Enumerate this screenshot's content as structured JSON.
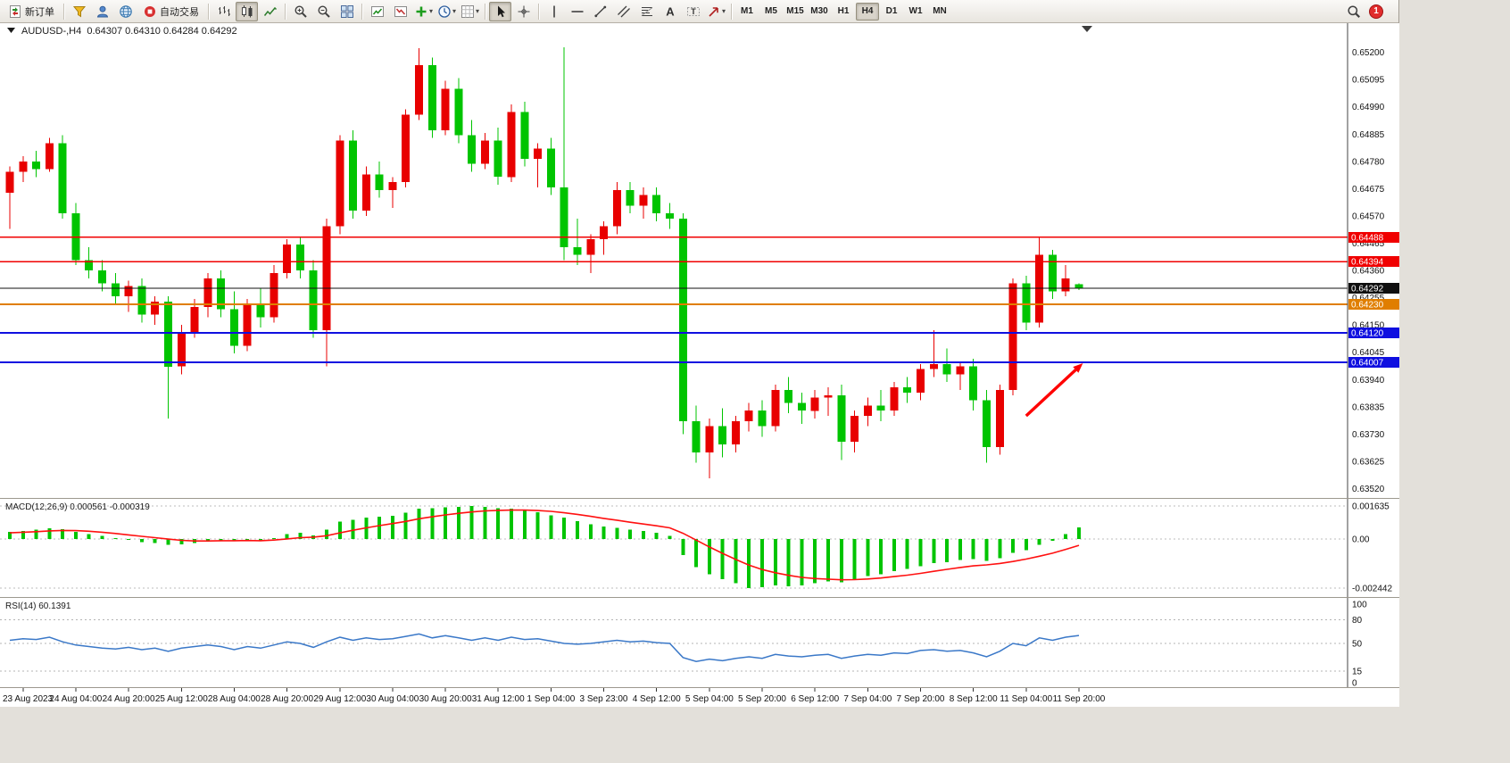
{
  "toolbar": {
    "new_order_label": "新订单",
    "auto_trading_label": "自动交易",
    "timeframes": [
      "M1",
      "M5",
      "M15",
      "M30",
      "H1",
      "H4",
      "D1",
      "W1",
      "MN"
    ],
    "active_timeframe": "H4",
    "notification_badge": "1",
    "icons": [
      "new-order-icon",
      "funnel-icon",
      "user-icon",
      "globe-icon",
      "auto-trading-icon",
      "bar-chart-icon",
      "candlestick-icon",
      "line-chart-icon",
      "zoom-in-icon",
      "zoom-out-icon",
      "tile-windows-icon",
      "indicator-window-up-icon",
      "indicator-window-down-icon",
      "add-indicator-icon",
      "clock-icon",
      "chart-properties-icon",
      "cursor-icon",
      "crosshair-icon",
      "vertical-line-icon",
      "horizontal-line-icon",
      "trendline-icon",
      "channel-icon",
      "fibonacci-icon",
      "text-icon",
      "text-label-icon",
      "arrow-tool-icon",
      "search-icon",
      "notification-badge"
    ]
  },
  "chart": {
    "symbol_period": "AUDUSD-,H4",
    "open": "0.64307",
    "high": "0.64310",
    "low": "0.64284",
    "close": "0.64292"
  },
  "indicators": {
    "macd_label": "MACD(12,26,9)",
    "macd_main_value": "0.000561",
    "macd_signal_value": "-0.000319",
    "rsi_label": "RSI(14)",
    "rsi_value": "60.1391"
  },
  "theme": {
    "up_color": "#e80000",
    "down_color": "#00c400",
    "macd_hist_color": "#00c400",
    "macd_signal_color": "#ff1010",
    "rsi_color": "#3a78c8",
    "axis_text": "#111111",
    "current_price_color": "#101010"
  },
  "chart_data": {
    "type": "candlestick",
    "symbol": "AUDUSD-",
    "timeframe": "H4",
    "price_range": {
      "top": 0.65312,
      "bottom": 0.63484
    },
    "price_axis_ticks": [
      "0.65200",
      "0.65095",
      "0.64990",
      "0.64885",
      "0.64780",
      "0.64675",
      "0.64570",
      "0.64465",
      "0.64360",
      "0.64255",
      "0.64150",
      "0.64045",
      "0.63940",
      "0.63835",
      "0.63730",
      "0.63625",
      "0.63520"
    ],
    "time_axis": {
      "first_label_bar": 1,
      "bar_step": 4,
      "labels": [
        "23 Aug 2023",
        "24 Aug 04:00",
        "24 Aug 20:00",
        "25 Aug 12:00",
        "28 Aug 04:00",
        "28 Aug 20:00",
        "29 Aug 12:00",
        "30 Aug 04:00",
        "30 Aug 20:00",
        "31 Aug 12:00",
        "1 Sep 04:00",
        "3 Sep 23:00",
        "4 Sep 12:00",
        "5 Sep 04:00",
        "5 Sep 20:00",
        "6 Sep 12:00",
        "7 Sep 04:00",
        "7 Sep 20:00",
        "8 Sep 12:00",
        "11 Sep 04:00",
        "11 Sep 20:00"
      ]
    },
    "candles": [
      [
        0.6466,
        0.6476,
        0.6452,
        0.6474
      ],
      [
        0.6474,
        0.648,
        0.647,
        0.6478
      ],
      [
        0.6478,
        0.6482,
        0.6472,
        0.6475
      ],
      [
        0.6475,
        0.6487,
        0.6474,
        0.6485
      ],
      [
        0.6485,
        0.6488,
        0.6456,
        0.6458
      ],
      [
        0.6458,
        0.6462,
        0.6438,
        0.644
      ],
      [
        0.644,
        0.6445,
        0.6433,
        0.6436
      ],
      [
        0.6436,
        0.644,
        0.6428,
        0.6431
      ],
      [
        0.6431,
        0.6435,
        0.6423,
        0.6426
      ],
      [
        0.6426,
        0.6432,
        0.642,
        0.643
      ],
      [
        0.643,
        0.6433,
        0.6416,
        0.6419
      ],
      [
        0.6419,
        0.6426,
        0.6415,
        0.6424
      ],
      [
        0.6424,
        0.6426,
        0.6379,
        0.6399
      ],
      [
        0.6399,
        0.6415,
        0.6396,
        0.6412
      ],
      [
        0.6412,
        0.6425,
        0.641,
        0.6422
      ],
      [
        0.6422,
        0.6435,
        0.6418,
        0.6433
      ],
      [
        0.6433,
        0.6436,
        0.6418,
        0.6421
      ],
      [
        0.6421,
        0.6428,
        0.6404,
        0.6407
      ],
      [
        0.6407,
        0.6425,
        0.6405,
        0.6423
      ],
      [
        0.6423,
        0.6429,
        0.6414,
        0.6418
      ],
      [
        0.6418,
        0.6438,
        0.6416,
        0.6435
      ],
      [
        0.6435,
        0.6448,
        0.6433,
        0.6446
      ],
      [
        0.6446,
        0.6449,
        0.6433,
        0.6436
      ],
      [
        0.6436,
        0.644,
        0.641,
        0.6413
      ],
      [
        0.6413,
        0.6456,
        0.6399,
        0.6453
      ],
      [
        0.6453,
        0.6488,
        0.645,
        0.6486
      ],
      [
        0.6486,
        0.649,
        0.6456,
        0.6459
      ],
      [
        0.6459,
        0.6476,
        0.6457,
        0.6473
      ],
      [
        0.6473,
        0.6478,
        0.6464,
        0.6467
      ],
      [
        0.6467,
        0.6472,
        0.646,
        0.647
      ],
      [
        0.647,
        0.6498,
        0.6468,
        0.6496
      ],
      [
        0.6496,
        0.65215,
        0.6494,
        0.6515
      ],
      [
        0.6515,
        0.6518,
        0.6487,
        0.649
      ],
      [
        0.649,
        0.6509,
        0.6488,
        0.6506
      ],
      [
        0.6506,
        0.651,
        0.6485,
        0.6488
      ],
      [
        0.6488,
        0.6494,
        0.6474,
        0.6477
      ],
      [
        0.6477,
        0.6489,
        0.6475,
        0.6486
      ],
      [
        0.6486,
        0.6491,
        0.6469,
        0.6472
      ],
      [
        0.6472,
        0.65,
        0.647,
        0.6497
      ],
      [
        0.6497,
        0.6501,
        0.6476,
        0.6479
      ],
      [
        0.6479,
        0.6485,
        0.6468,
        0.6483
      ],
      [
        0.6483,
        0.6487,
        0.6465,
        0.6468
      ],
      [
        0.6468,
        0.6522,
        0.644,
        0.6445
      ],
      [
        0.6445,
        0.6456,
        0.6438,
        0.6442
      ],
      [
        0.6442,
        0.645,
        0.6435,
        0.6448
      ],
      [
        0.6448,
        0.6455,
        0.6442,
        0.6453
      ],
      [
        0.6453,
        0.647,
        0.645,
        0.6467
      ],
      [
        0.6467,
        0.647,
        0.6458,
        0.6461
      ],
      [
        0.6461,
        0.6468,
        0.6456,
        0.6465
      ],
      [
        0.6465,
        0.6468,
        0.6455,
        0.6458
      ],
      [
        0.6458,
        0.6462,
        0.6452,
        0.6456
      ],
      [
        0.6456,
        0.6458,
        0.6373,
        0.6378
      ],
      [
        0.6378,
        0.6384,
        0.6362,
        0.6366
      ],
      [
        0.6366,
        0.6379,
        0.6356,
        0.6376
      ],
      [
        0.6376,
        0.6383,
        0.6364,
        0.6369
      ],
      [
        0.6369,
        0.638,
        0.6366,
        0.6378
      ],
      [
        0.6378,
        0.6385,
        0.6374,
        0.6382
      ],
      [
        0.6382,
        0.6386,
        0.6372,
        0.6376
      ],
      [
        0.6376,
        0.6392,
        0.6374,
        0.639
      ],
      [
        0.639,
        0.6395,
        0.6381,
        0.6385
      ],
      [
        0.6385,
        0.6389,
        0.6377,
        0.6382
      ],
      [
        0.6382,
        0.639,
        0.6379,
        0.6387
      ],
      [
        0.6387,
        0.6391,
        0.638,
        0.6388
      ],
      [
        0.6388,
        0.6392,
        0.6363,
        0.637
      ],
      [
        0.637,
        0.6382,
        0.6366,
        0.638
      ],
      [
        0.638,
        0.6387,
        0.6376,
        0.6384
      ],
      [
        0.6384,
        0.639,
        0.6378,
        0.6382
      ],
      [
        0.6382,
        0.6393,
        0.638,
        0.6391
      ],
      [
        0.6391,
        0.6395,
        0.6385,
        0.6389
      ],
      [
        0.6389,
        0.64,
        0.6386,
        0.6398
      ],
      [
        0.6398,
        0.6413,
        0.6395,
        0.64
      ],
      [
        0.64,
        0.6406,
        0.6393,
        0.6396
      ],
      [
        0.6396,
        0.6401,
        0.639,
        0.6399
      ],
      [
        0.6399,
        0.6402,
        0.6382,
        0.6386
      ],
      [
        0.6386,
        0.639,
        0.6362,
        0.6368
      ],
      [
        0.6368,
        0.6392,
        0.6365,
        0.639
      ],
      [
        0.639,
        0.6433,
        0.6388,
        0.6431
      ],
      [
        0.6431,
        0.6434,
        0.6413,
        0.6416
      ],
      [
        0.6416,
        0.6449,
        0.6414,
        0.6442
      ],
      [
        0.6442,
        0.6444,
        0.6425,
        0.6428
      ],
      [
        0.6428,
        0.6438,
        0.6426,
        0.6433
      ],
      [
        0.64307,
        0.6431,
        0.64284,
        0.64292
      ]
    ],
    "horizontal_lines": [
      {
        "price": 0.64488,
        "label": "0.64488",
        "color": "#f00000",
        "width": 1.4
      },
      {
        "price": 0.64394,
        "label": "0.64394",
        "color": "#f00000",
        "width": 1.4
      },
      {
        "price": 0.6423,
        "label": "0.64230",
        "color": "#e07e00",
        "width": 2
      },
      {
        "price": 0.6412,
        "label": "0.64120",
        "color": "#0f0fe0",
        "width": 2
      },
      {
        "price": 0.64007,
        "label": "0.64007",
        "color": "#0f0fe0",
        "width": 2
      }
    ],
    "current_price": {
      "value": 0.64292,
      "label": "0.64292"
    },
    "annotation_arrow": {
      "from_bar": 77,
      "from_price": 0.638,
      "to_bar": 81.3,
      "to_price": 0.64003,
      "color": "#ff0000"
    },
    "macd": {
      "axis_max": 0.001635,
      "axis_min": -0.002442,
      "axis_labels": [
        "0.001635",
        "0.00",
        "-0.002442"
      ],
      "values": [
        0.00035,
        0.0004,
        0.00045,
        0.00052,
        0.00048,
        0.00035,
        0.00025,
        0.00015,
        5e-05,
        -5e-05,
        -0.00015,
        -0.0002,
        -0.0003,
        -0.00028,
        -0.0002,
        -0.0001,
        -8e-05,
        -0.00012,
        -6e-05,
        -0.0001,
        5e-05,
        0.00025,
        0.0003,
        0.00018,
        0.00045,
        0.00085,
        0.00095,
        0.00105,
        0.0011,
        0.00115,
        0.0013,
        0.0015,
        0.00152,
        0.00156,
        0.0016,
        0.001635,
        0.0016,
        0.00152,
        0.0015,
        0.00142,
        0.00132,
        0.00118,
        0.00105,
        0.00088,
        0.00072,
        0.00062,
        0.00056,
        0.00046,
        0.0004,
        0.0003,
        0.00015,
        -0.0008,
        -0.0014,
        -0.00175,
        -0.002,
        -0.0022,
        -0.002442,
        -0.0024,
        -0.0023,
        -0.00235,
        -0.0023,
        -0.0022,
        -0.0021,
        -0.00215,
        -0.002,
        -0.00185,
        -0.00175,
        -0.0016,
        -0.0015,
        -0.00135,
        -0.0012,
        -0.00115,
        -0.00105,
        -0.001,
        -0.0011,
        -0.00095,
        -0.0007,
        -0.00055,
        -0.0003,
        -0.0001,
        0.00025,
        0.000561
      ],
      "signal": [
        0.0003,
        0.00033,
        0.00036,
        0.0004,
        0.00042,
        0.00041,
        0.00038,
        0.00033,
        0.00027,
        0.0002,
        0.00013,
        6e-05,
        -1e-05,
        -7e-05,
        -0.0001,
        -0.0001,
        -9e-05,
        -9e-05,
        -8e-05,
        -9e-05,
        -6e-05,
        0.0,
        6e-05,
        9e-05,
        0.00016,
        0.0003,
        0.00043,
        0.00055,
        0.00066,
        0.00076,
        0.00087,
        0.001,
        0.0011,
        0.00119,
        0.00127,
        0.00134,
        0.00139,
        0.00142,
        0.00143,
        0.00143,
        0.00141,
        0.00137,
        0.0013,
        0.00122,
        0.00112,
        0.00102,
        0.00093,
        0.00083,
        0.00074,
        0.00065,
        0.00055,
        0.00028,
        -6e-05,
        -0.0004,
        -0.00072,
        -0.00102,
        -0.0013,
        -0.00152,
        -0.00168,
        -0.00181,
        -0.00191,
        -0.00197,
        -0.002,
        -0.00203,
        -0.00202,
        -0.00199,
        -0.00194,
        -0.00187,
        -0.0018,
        -0.00171,
        -0.00161,
        -0.00151,
        -0.00142,
        -0.00134,
        -0.00129,
        -0.00122,
        -0.00112,
        -0.001,
        -0.00086,
        -0.00071,
        -0.00052,
        -0.000319
      ]
    },
    "rsi": {
      "period": 14,
      "levels": [
        "100",
        "80",
        "50",
        "15",
        "0"
      ],
      "dashed_levels": [
        80,
        50,
        15
      ],
      "values": [
        54,
        56,
        55,
        58,
        52,
        48,
        46,
        44,
        43,
        45,
        42,
        44,
        40,
        44,
        46,
        48,
        46,
        42,
        46,
        44,
        48,
        52,
        50,
        45,
        52,
        58,
        54,
        57,
        55,
        56,
        59,
        62,
        57,
        60,
        57,
        54,
        57,
        54,
        58,
        55,
        56,
        53,
        50,
        49,
        50,
        52,
        54,
        52,
        53,
        51,
        50,
        32,
        27,
        30,
        28,
        31,
        33,
        31,
        36,
        34,
        33,
        35,
        36,
        31,
        34,
        36,
        35,
        38,
        37,
        41,
        42,
        40,
        41,
        38,
        33,
        40,
        50,
        47,
        57,
        54,
        58,
        60.14
      ]
    }
  }
}
